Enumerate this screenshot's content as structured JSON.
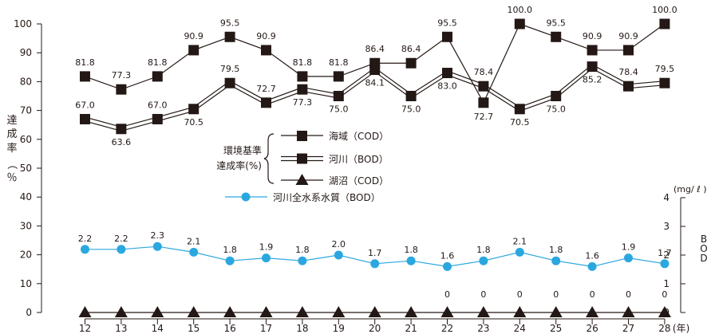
{
  "chart_data": {
    "type": "line",
    "x": [
      "12",
      "13",
      "14",
      "15",
      "16",
      "17",
      "18",
      "19",
      "20",
      "21",
      "22",
      "23",
      "24",
      "25",
      "26",
      "27",
      "28"
    ],
    "x_unit": "(年)",
    "left_axis": {
      "label": "達成率（％）",
      "ticks": [
        "0",
        "10",
        "20",
        "30",
        "40",
        "50",
        "60",
        "70",
        "80",
        "90",
        "100"
      ],
      "ylim": [
        0,
        100
      ]
    },
    "right_axis": {
      "label": "BOD",
      "unit": "(mg/ ℓ )",
      "ticks": [
        "0",
        "1",
        "2",
        "3",
        "4"
      ],
      "ylim": [
        0,
        4
      ]
    },
    "colors": {
      "ink": "#231815",
      "blue": "#2ba7df"
    },
    "legend": {
      "group_label": "環境基準\n達成率(%)",
      "entries": [
        "海域（COD）",
        "河川（BOD）",
        "湖沼（COD）",
        "河川全水系水質（BOD）"
      ]
    },
    "series": [
      {
        "name": "海域（COD）",
        "axis": "left",
        "marker": "square",
        "values": [
          81.8,
          77.3,
          81.8,
          90.9,
          95.5,
          90.9,
          81.8,
          81.8,
          86.4,
          86.4,
          95.5,
          72.7,
          100.0,
          95.5,
          90.9,
          90.9,
          100.0
        ],
        "labels": [
          "81.8",
          "77.3",
          "81.8",
          "90.9",
          "95.5",
          "90.9",
          "81.8",
          "81.8",
          "86.4",
          "86.4",
          "95.5",
          "72.7",
          "100.0",
          "95.5",
          "90.9",
          "90.9",
          "100.0"
        ]
      },
      {
        "name": "河川（BOD）",
        "axis": "left",
        "marker": "square",
        "values": [
          67.0,
          63.6,
          67.0,
          70.5,
          79.5,
          72.7,
          77.3,
          75.0,
          84.1,
          75.0,
          83.0,
          78.4,
          70.5,
          75.0,
          85.2,
          78.4,
          79.5
        ],
        "labels": [
          "67.0",
          "63.6",
          "67.0",
          "70.5",
          "79.5",
          "72.7",
          "77.3",
          "75.0",
          "84.1",
          "75.0",
          "83.0",
          "78.4",
          "70.5",
          "75.0",
          "85.2",
          "78.4",
          "79.5"
        ]
      },
      {
        "name": "湖沼（COD）",
        "axis": "left",
        "marker": "triangle",
        "values": [
          0,
          0,
          0,
          0,
          0,
          0,
          0,
          0,
          0,
          0,
          0,
          0,
          0,
          0,
          0,
          0,
          0
        ],
        "labels": [
          "",
          "",
          "",
          "",
          "",
          "",
          "",
          "",
          "",
          "",
          "0",
          "0",
          "0",
          "0",
          "0",
          "0",
          "0"
        ]
      },
      {
        "name": "河川全水系水質（BOD）",
        "axis": "right",
        "marker": "circle",
        "values": [
          2.2,
          2.2,
          2.3,
          2.1,
          1.8,
          1.9,
          1.8,
          2.0,
          1.7,
          1.8,
          1.6,
          1.8,
          2.1,
          1.8,
          1.6,
          1.9,
          1.7
        ],
        "labels": [
          "2.2",
          "2.2",
          "2.3",
          "2.1",
          "1.8",
          "1.9",
          "1.8",
          "2.0",
          "1.7",
          "1.8",
          "1.6",
          "1.8",
          "2.1",
          "1.8",
          "1.6",
          "1.9",
          "1.7"
        ]
      }
    ]
  }
}
